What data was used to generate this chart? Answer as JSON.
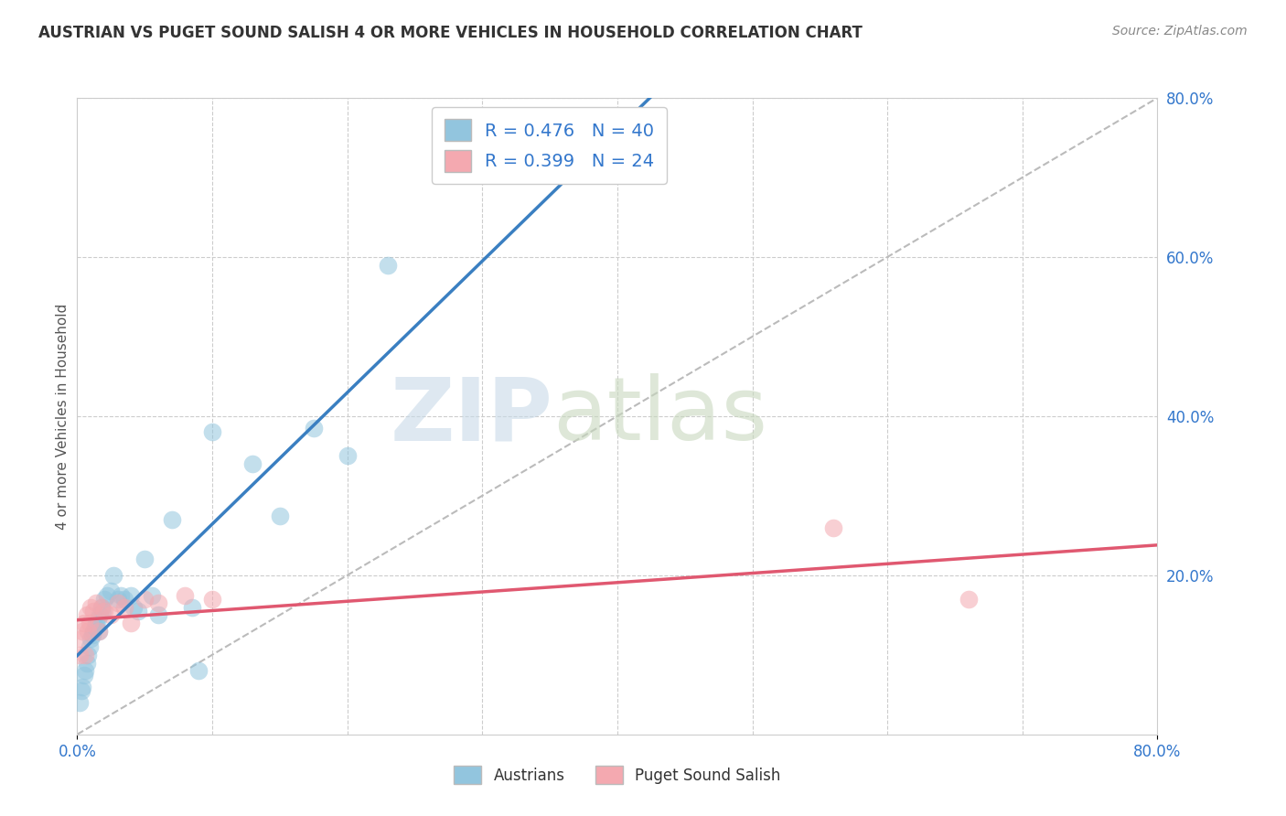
{
  "title": "AUSTRIAN VS PUGET SOUND SALISH 4 OR MORE VEHICLES IN HOUSEHOLD CORRELATION CHART",
  "source": "Source: ZipAtlas.com",
  "ylabel": "4 or more Vehicles in Household",
  "xlim": [
    0.0,
    0.8
  ],
  "ylim": [
    0.0,
    0.8
  ],
  "right_ytick_vals": [
    0.2,
    0.4,
    0.6,
    0.8
  ],
  "right_ytick_labels": [
    "20.0%",
    "40.0%",
    "60.0%",
    "80.0%"
  ],
  "xtick_vals": [
    0.0,
    0.8
  ],
  "xtick_labels": [
    "0.0%",
    "80.0%"
  ],
  "blue_R": 0.476,
  "blue_N": 40,
  "pink_R": 0.399,
  "pink_N": 24,
  "blue_color": "#92c5de",
  "pink_color": "#f4a9b0",
  "blue_line_color": "#3a7fc1",
  "pink_line_color": "#e05870",
  "dashed_line_color": "#bbbbbb",
  "austrians_x": [
    0.002,
    0.003,
    0.004,
    0.005,
    0.006,
    0.007,
    0.008,
    0.009,
    0.01,
    0.011,
    0.012,
    0.013,
    0.014,
    0.015,
    0.016,
    0.017,
    0.018,
    0.019,
    0.02,
    0.022,
    0.025,
    0.027,
    0.03,
    0.032,
    0.035,
    0.04,
    0.042,
    0.045,
    0.05,
    0.055,
    0.06,
    0.07,
    0.085,
    0.09,
    0.1,
    0.13,
    0.15,
    0.175,
    0.2,
    0.23
  ],
  "austrians_y": [
    0.04,
    0.055,
    0.06,
    0.075,
    0.08,
    0.09,
    0.1,
    0.11,
    0.12,
    0.125,
    0.13,
    0.135,
    0.14,
    0.145,
    0.13,
    0.15,
    0.16,
    0.155,
    0.17,
    0.175,
    0.18,
    0.2,
    0.17,
    0.175,
    0.17,
    0.175,
    0.16,
    0.155,
    0.22,
    0.175,
    0.15,
    0.27,
    0.16,
    0.08,
    0.38,
    0.34,
    0.275,
    0.385,
    0.35,
    0.59
  ],
  "salish_x": [
    0.002,
    0.003,
    0.004,
    0.005,
    0.006,
    0.007,
    0.008,
    0.009,
    0.01,
    0.012,
    0.014,
    0.016,
    0.018,
    0.02,
    0.025,
    0.03,
    0.035,
    0.04,
    0.05,
    0.06,
    0.08,
    0.1,
    0.56,
    0.66
  ],
  "salish_y": [
    0.1,
    0.12,
    0.13,
    0.14,
    0.1,
    0.15,
    0.13,
    0.14,
    0.16,
    0.155,
    0.165,
    0.13,
    0.16,
    0.155,
    0.15,
    0.165,
    0.16,
    0.14,
    0.17,
    0.165,
    0.175,
    0.17,
    0.26,
    0.17
  ]
}
